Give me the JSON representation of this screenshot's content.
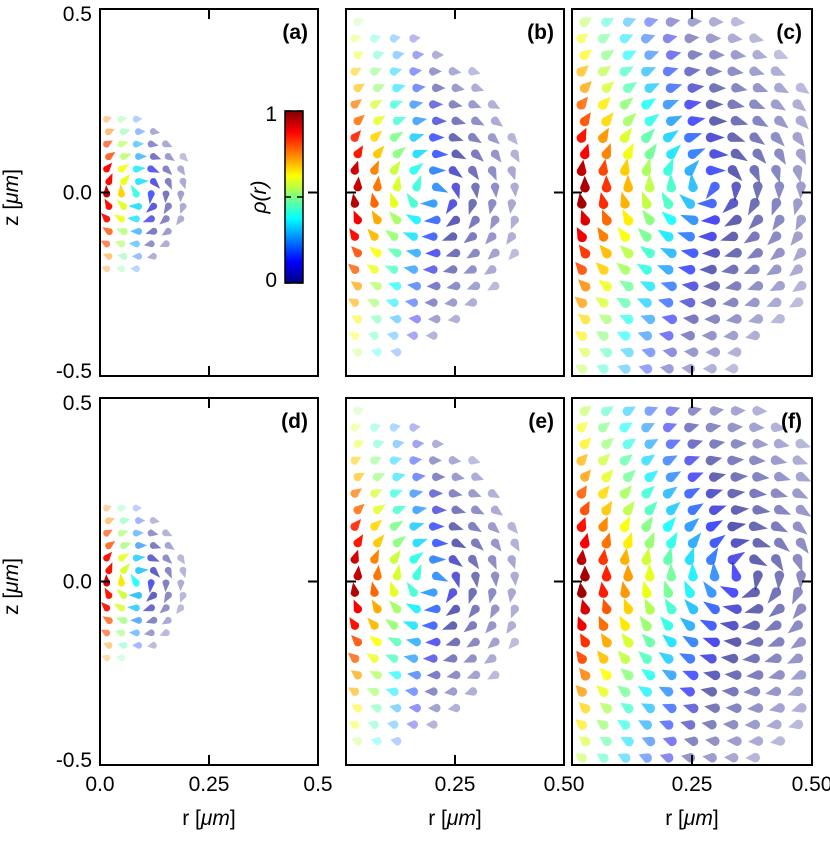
{
  "chart_data": {
    "type": "scatter",
    "description_of_marks": "teardrop-shaped vector markers colored by rho(r)",
    "colorbar": {
      "label": "ρ(r)",
      "min_label": "0",
      "max_label": "1",
      "range": [
        0,
        1
      ],
      "colormap": [
        "#00007f",
        "#0000ff",
        "#007fff",
        "#00ffff",
        "#7fff7f",
        "#ffff00",
        "#ff7f00",
        "#ff0000",
        "#7f0000"
      ]
    },
    "y_axis": {
      "label_prefix": "z [",
      "label_unit": "μm",
      "label_suffix": "]",
      "range": [
        -0.5,
        0.5
      ],
      "ticks": [
        {
          "value": -0.5,
          "label": "-0.5"
        },
        {
          "value": 0.0,
          "label": "0.0"
        },
        {
          "value": 0.5,
          "label": "0.5"
        }
      ]
    },
    "x_axis": {
      "label_prefix": "r [",
      "label_unit": "μm",
      "label_suffix": "]",
      "range_narrow": [
        0,
        0.5
      ],
      "range_wide": [
        0,
        0.5
      ]
    },
    "panels": [
      {
        "id": "a",
        "label": "(a)",
        "row": 0,
        "col": 0,
        "xlim": [
          0,
          0.5
        ],
        "extent": 0.21,
        "center": [
          0.09,
          0.0
        ],
        "spacing": 0.034,
        "show_colorbar": true
      },
      {
        "id": "b",
        "label": "(b)",
        "row": 0,
        "col": 1,
        "xlim": [
          0,
          0.5
        ],
        "extent": 0.42,
        "center": [
          0.2,
          0.0
        ],
        "spacing": 0.045
      },
      {
        "id": "c",
        "label": "(c)",
        "row": 0,
        "col": 2,
        "xlim": [
          0,
          0.5
        ],
        "extent": 0.55,
        "center": [
          0.29,
          0.02
        ],
        "spacing": 0.045
      },
      {
        "id": "d",
        "label": "(d)",
        "row": 1,
        "col": 0,
        "xlim": [
          0,
          0.5
        ],
        "extent": 0.2,
        "center": [
          0.09,
          0.0
        ],
        "spacing": 0.034,
        "xticks": [
          {
            "value": 0.0,
            "label": "0.0"
          },
          {
            "value": 0.25,
            "label": "0.25"
          },
          {
            "value": 0.5,
            "label": "0.5"
          }
        ],
        "show_xlabel": true
      },
      {
        "id": "e",
        "label": "(e)",
        "row": 1,
        "col": 1,
        "xlim": [
          0,
          0.5
        ],
        "extent": 0.42,
        "center": [
          0.2,
          0.0
        ],
        "spacing": 0.045,
        "xticks": [
          {
            "value": 0.25,
            "label": "0.25"
          },
          {
            "value": 0.5,
            "label": "0.50"
          }
        ],
        "show_xlabel": true
      },
      {
        "id": "f",
        "label": "(f)",
        "row": 1,
        "col": 2,
        "xlim": [
          0,
          0.5
        ],
        "extent": 0.6,
        "center": [
          0.36,
          0.02
        ],
        "spacing": 0.045,
        "xticks": [
          {
            "value": 0.25,
            "label": "0.25"
          },
          {
            "value": 0.5,
            "label": "0.50"
          }
        ],
        "show_xlabel": true
      }
    ]
  }
}
